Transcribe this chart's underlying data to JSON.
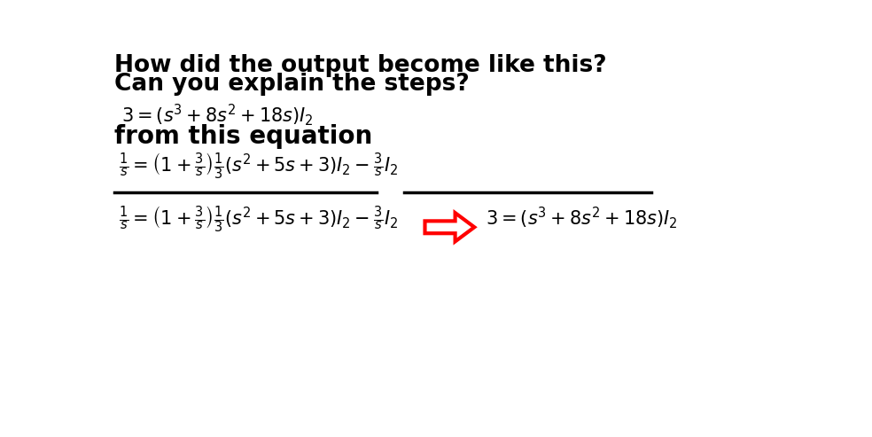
{
  "bg_color": "#ffffff",
  "title_line1": "How did the output become like this?",
  "title_line2": "Can you explain the steps?",
  "label_from": "from this equation",
  "figsize": [
    9.84,
    4.93
  ],
  "dpi": 100,
  "title_fs": 19,
  "eq_fs": 15,
  "label_fs": 20
}
